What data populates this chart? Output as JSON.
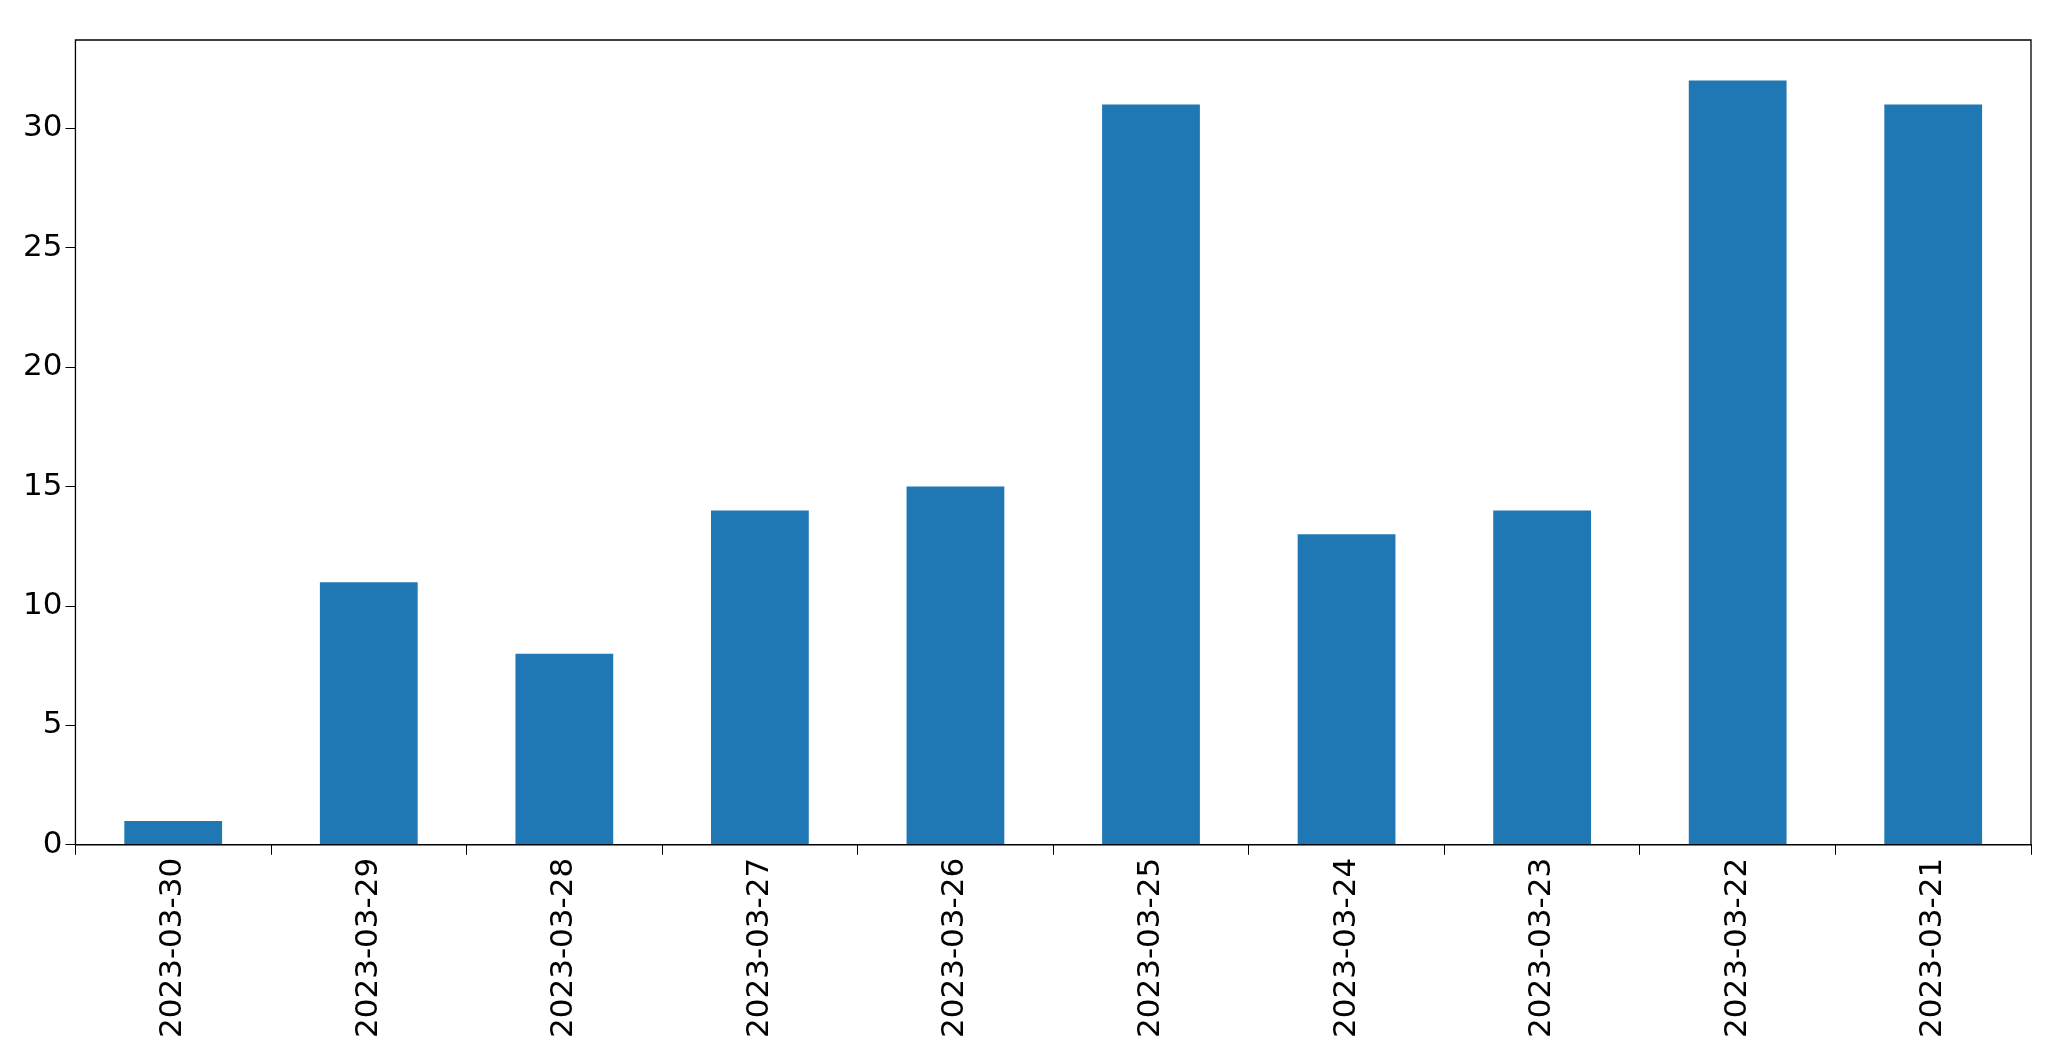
{
  "chart_data": {
    "type": "bar",
    "categories": [
      "2023-03-30",
      "2023-03-29",
      "2023-03-28",
      "2023-03-27",
      "2023-03-26",
      "2023-03-25",
      "2023-03-24",
      "2023-03-23",
      "2023-03-22",
      "2023-03-21"
    ],
    "values": [
      1,
      11,
      8,
      14,
      15,
      31,
      13,
      14,
      32,
      31
    ],
    "color": "#1f77b4",
    "ylim": [
      0,
      33.7
    ],
    "yticks": [
      0,
      5,
      10,
      15,
      20,
      25,
      30
    ],
    "grid": false,
    "legend": false
  }
}
